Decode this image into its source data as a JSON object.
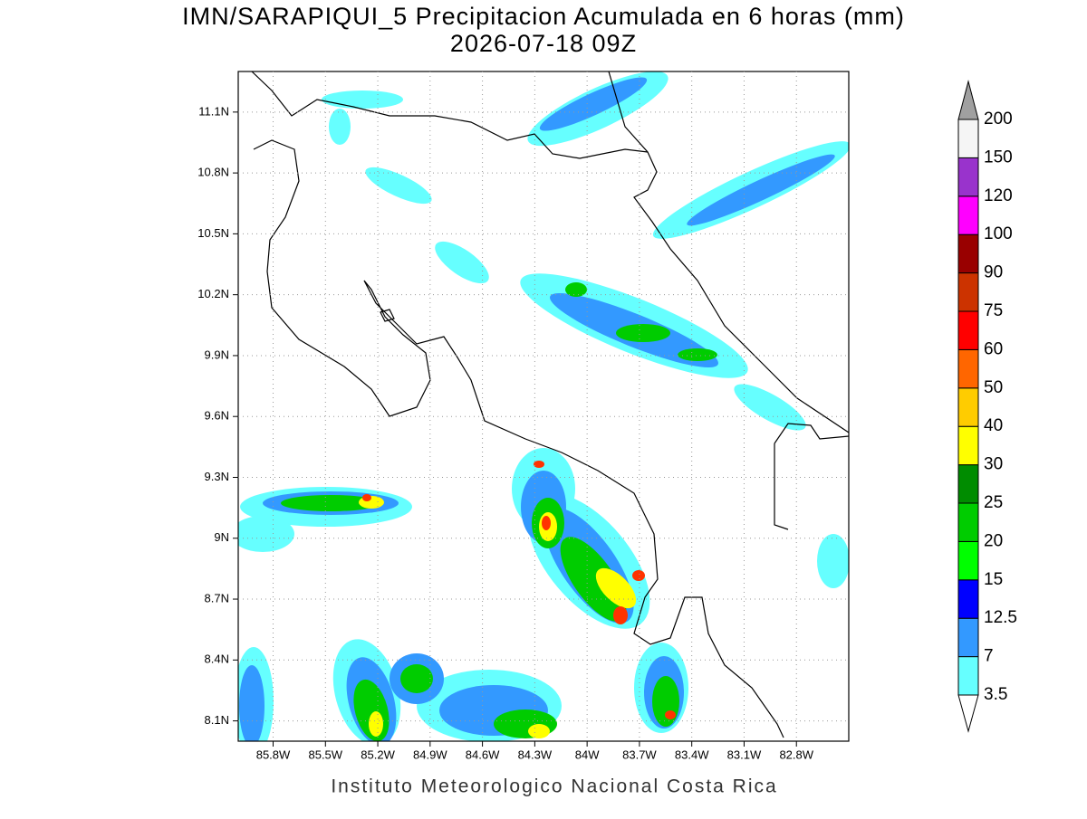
{
  "map": {
    "title": "IMN/SARAPIQUI_5 Precipitacion Acumulada en 6 horas (mm)",
    "subtitle": "2026-07-18 09Z",
    "footer": "Instituto Meteorologico Nacional Costa Rica",
    "lonlim": [
      -86.0,
      -82.5
    ],
    "latlim": [
      8.0,
      11.3
    ],
    "lon_ticks": [
      {
        "value": -85.8,
        "label": "85.8W"
      },
      {
        "value": -85.5,
        "label": "85.5W"
      },
      {
        "value": -85.2,
        "label": "85.2W"
      },
      {
        "value": -84.9,
        "label": "84.9W"
      },
      {
        "value": -84.6,
        "label": "84.6W"
      },
      {
        "value": -84.3,
        "label": "84.3W"
      },
      {
        "value": -84.0,
        "label": "84W"
      },
      {
        "value": -83.7,
        "label": "83.7W"
      },
      {
        "value": -83.4,
        "label": "83.4W"
      },
      {
        "value": -83.1,
        "label": "83.1W"
      },
      {
        "value": -82.8,
        "label": "82.8W"
      }
    ],
    "lat_ticks": [
      {
        "value": 8.1,
        "label": "8.1N"
      },
      {
        "value": 8.4,
        "label": "8.4N"
      },
      {
        "value": 8.7,
        "label": "8.7N"
      },
      {
        "value": 9.0,
        "label": "9N"
      },
      {
        "value": 9.3,
        "label": "9.3N"
      },
      {
        "value": 9.6,
        "label": "9.6N"
      },
      {
        "value": 9.9,
        "label": "9.9N"
      },
      {
        "value": 10.2,
        "label": "10.2N"
      },
      {
        "value": 10.5,
        "label": "10.5N"
      },
      {
        "value": 10.8,
        "label": "10.8N"
      },
      {
        "value": 11.1,
        "label": "11.1N"
      }
    ],
    "grid": true,
    "colorbar": {
      "levels": [
        3.5,
        7,
        12.5,
        15,
        20,
        25,
        30,
        40,
        50,
        60,
        75,
        90,
        100,
        120,
        150,
        200
      ],
      "colors": [
        "#66ffff",
        "#3399ff",
        "#0000ff",
        "#00ff00",
        "#00cc00",
        "#008c00",
        "#ffff00",
        "#ffcc00",
        "#ff6600",
        "#ff0000",
        "#cc3300",
        "#990000",
        "#ff00ff",
        "#9933cc",
        "#f5f5f5"
      ],
      "under_color": "#ffffff",
      "over_color": "#a0a0a0"
    }
  }
}
